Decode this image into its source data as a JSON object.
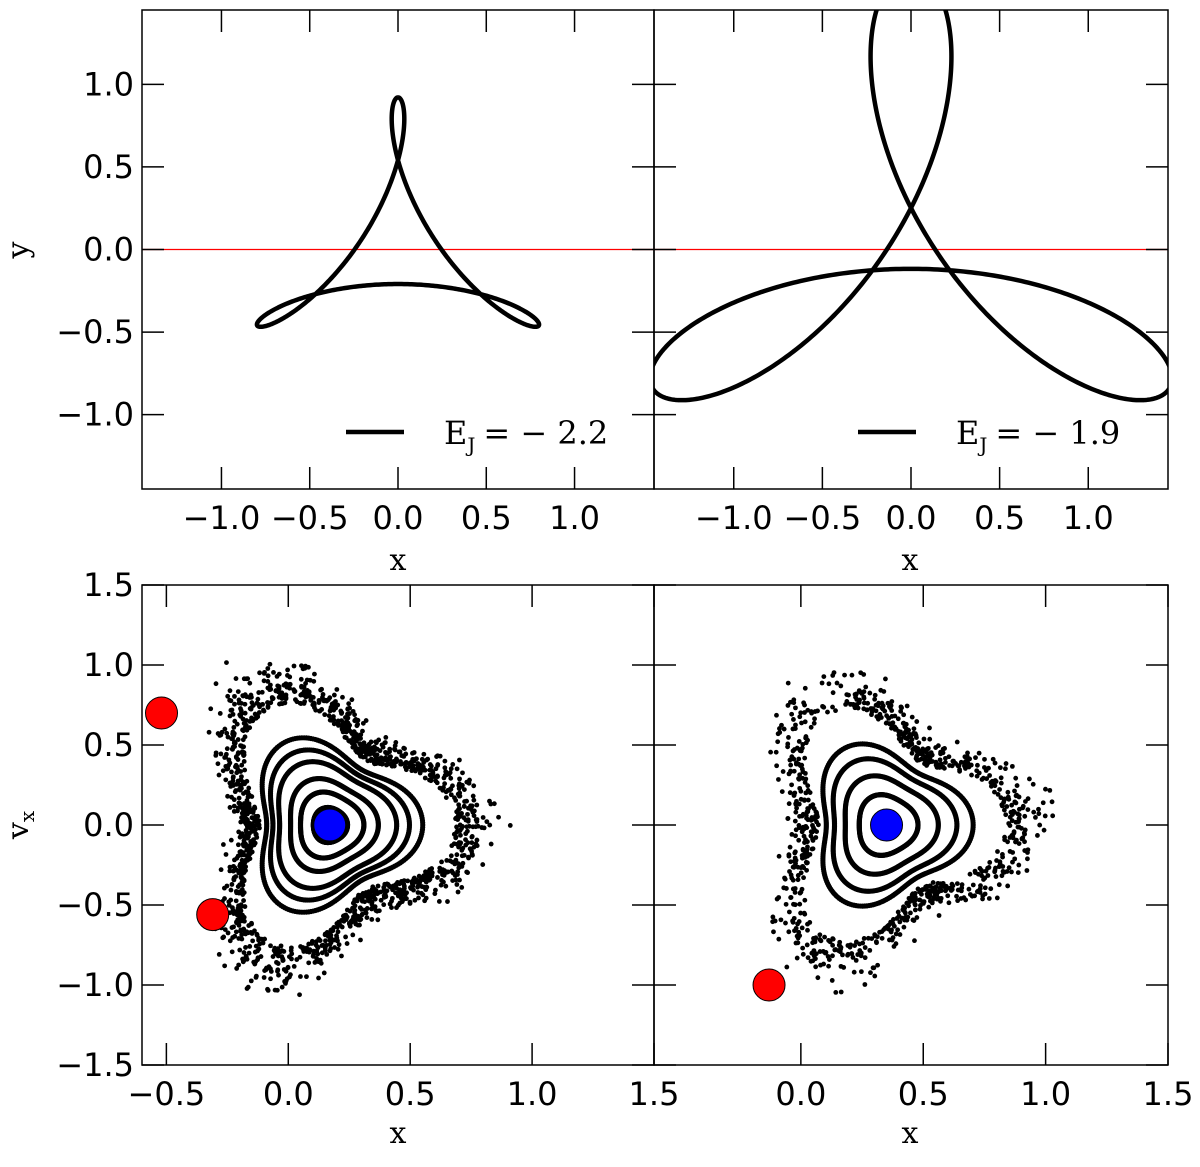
{
  "chart_data": [
    {
      "type": "line",
      "xlabel": "x",
      "ylabel": "y",
      "xlim": [
        -1.45,
        1.45
      ],
      "ylim": [
        -1.45,
        1.45
      ],
      "xticks": [
        "−1.0",
        "−0.5",
        "0.0",
        "0.5",
        "1.0"
      ],
      "yticks": [
        "−1.0",
        "−0.5",
        "0.0",
        "0.5",
        "1.0"
      ],
      "legend": {
        "label": "E",
        "subscript": "J",
        "value": "= − 2.2",
        "placement": "lower-right"
      },
      "orbit": {
        "color": "#000000",
        "shape": "three-petal loop"
      },
      "hline": {
        "y": 0.0,
        "color": "#ff0000"
      }
    },
    {
      "type": "line",
      "xlabel": "x",
      "ylabel": "",
      "xlim": [
        -1.45,
        1.45
      ],
      "ylim": [
        -1.45,
        1.45
      ],
      "xticks": [
        "−1.0",
        "−0.5",
        "0.0",
        "0.5",
        "1.0"
      ],
      "yticks": [],
      "legend": {
        "label": "E",
        "subscript": "J",
        "value": "= − 1.9",
        "placement": "lower-right"
      },
      "orbit": {
        "color": "#000000",
        "shape": "three-petal loop"
      },
      "hline": {
        "y": 0.0,
        "color": "#ff0000"
      }
    },
    {
      "type": "scatter",
      "xlabel": "x",
      "ylabel": "v",
      "ylabel_sub": "x",
      "xlim": [
        -0.6,
        1.5
      ],
      "ylim": [
        -1.5,
        1.5
      ],
      "xticks": [
        "−0.5",
        "0.0",
        "0.5",
        "1.0",
        "1.5"
      ],
      "yticks": [
        "−1.5",
        "−1.0",
        "−0.5",
        "0.0",
        "0.5",
        "1.0",
        "1.5"
      ],
      "markers": [
        {
          "x": 0.17,
          "y": 0.0,
          "color": "#0000ff"
        },
        {
          "x": -0.52,
          "y": 0.7,
          "color": "#ff0000"
        },
        {
          "x": -0.31,
          "y": -0.56,
          "color": "#ff0000"
        }
      ]
    },
    {
      "type": "scatter",
      "xlabel": "x",
      "ylabel": "",
      "xlim": [
        -0.6,
        1.5
      ],
      "ylim": [
        -1.5,
        1.5
      ],
      "xticks": [
        "0.0",
        "0.5",
        "1.0",
        "1.5"
      ],
      "yticks": [],
      "markers": [
        {
          "x": 0.35,
          "y": 0.0,
          "color": "#0000ff"
        },
        {
          "x": -0.13,
          "y": -1.0,
          "color": "#ff0000"
        }
      ]
    }
  ]
}
